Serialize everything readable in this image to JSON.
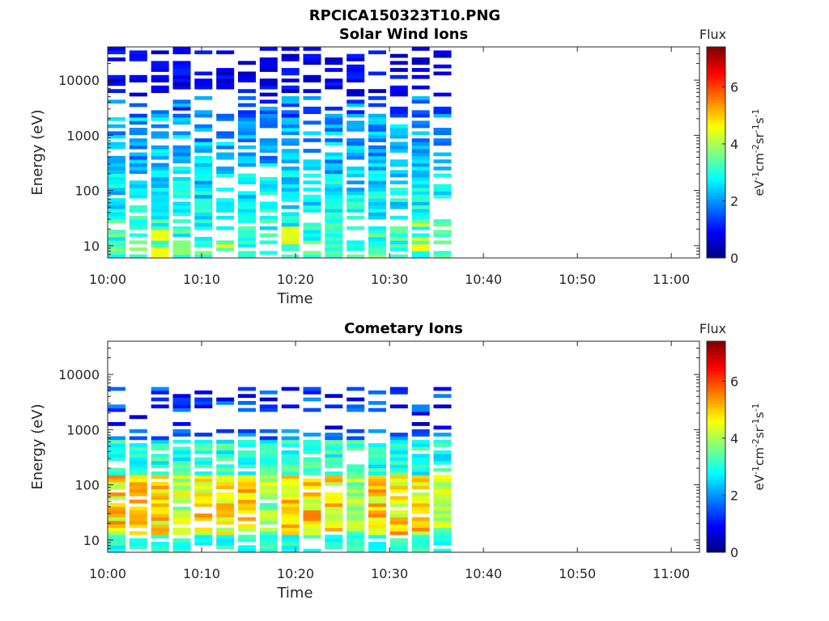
{
  "figure_title": "RPCICA150323T10.PNG",
  "chart_data": [
    {
      "type": "heatmap",
      "title": "Solar Wind Ions",
      "xlabel": "Time",
      "ylabel": "Energy (eV)",
      "yscale": "log",
      "ylim": [
        6,
        40000
      ],
      "xlim_minutes": [
        0,
        63
      ],
      "x_tick_labels": [
        "10:00",
        "10:10",
        "10:20",
        "10:30",
        "10:40",
        "10:50",
        "11:00"
      ],
      "y_tick_labels": [
        "10",
        "100",
        "1000",
        "10000"
      ],
      "y_tick_values": [
        10,
        100,
        1000,
        10000
      ],
      "colorbar": {
        "label": "Flux",
        "unit": "eV-1cm-2sr-1s-1",
        "range": [
          0,
          7.4
        ],
        "ticks": [
          "0",
          "2",
          "4",
          "6"
        ],
        "tick_values": [
          0,
          2,
          4,
          6
        ],
        "colormap": "jet"
      },
      "data_time_range": [
        "10:00",
        "10:37"
      ],
      "sweep_count": 16,
      "profile": "solar_wind",
      "description_values": {
        "peak_flux": 4.8,
        "typical_flux_low_energy": 3.0,
        "typical_flux_high_energy": 0.5
      }
    },
    {
      "type": "heatmap",
      "title": "Cometary Ions",
      "xlabel": "Time",
      "ylabel": "Energy (eV)",
      "yscale": "log",
      "ylim": [
        6,
        40000
      ],
      "xlim_minutes": [
        0,
        63
      ],
      "x_tick_labels": [
        "10:00",
        "10:10",
        "10:20",
        "10:30",
        "10:40",
        "10:50",
        "11:00"
      ],
      "y_tick_labels": [
        "10",
        "100",
        "1000",
        "10000"
      ],
      "y_tick_values": [
        10,
        100,
        1000,
        10000
      ],
      "colorbar": {
        "label": "Flux",
        "unit": "eV-1cm-2sr-1s-1",
        "range": [
          0,
          7.4
        ],
        "ticks": [
          "0",
          "2",
          "4",
          "6"
        ],
        "tick_values": [
          0,
          2,
          4,
          6
        ],
        "colormap": "jet"
      },
      "data_time_range": [
        "10:00",
        "10:37"
      ],
      "sweep_count": 16,
      "profile": "cometary",
      "description_values": {
        "peak_flux": 5.8,
        "typical_flux_low_energy": 4.5,
        "typical_flux_high_energy": 1.0
      }
    }
  ]
}
